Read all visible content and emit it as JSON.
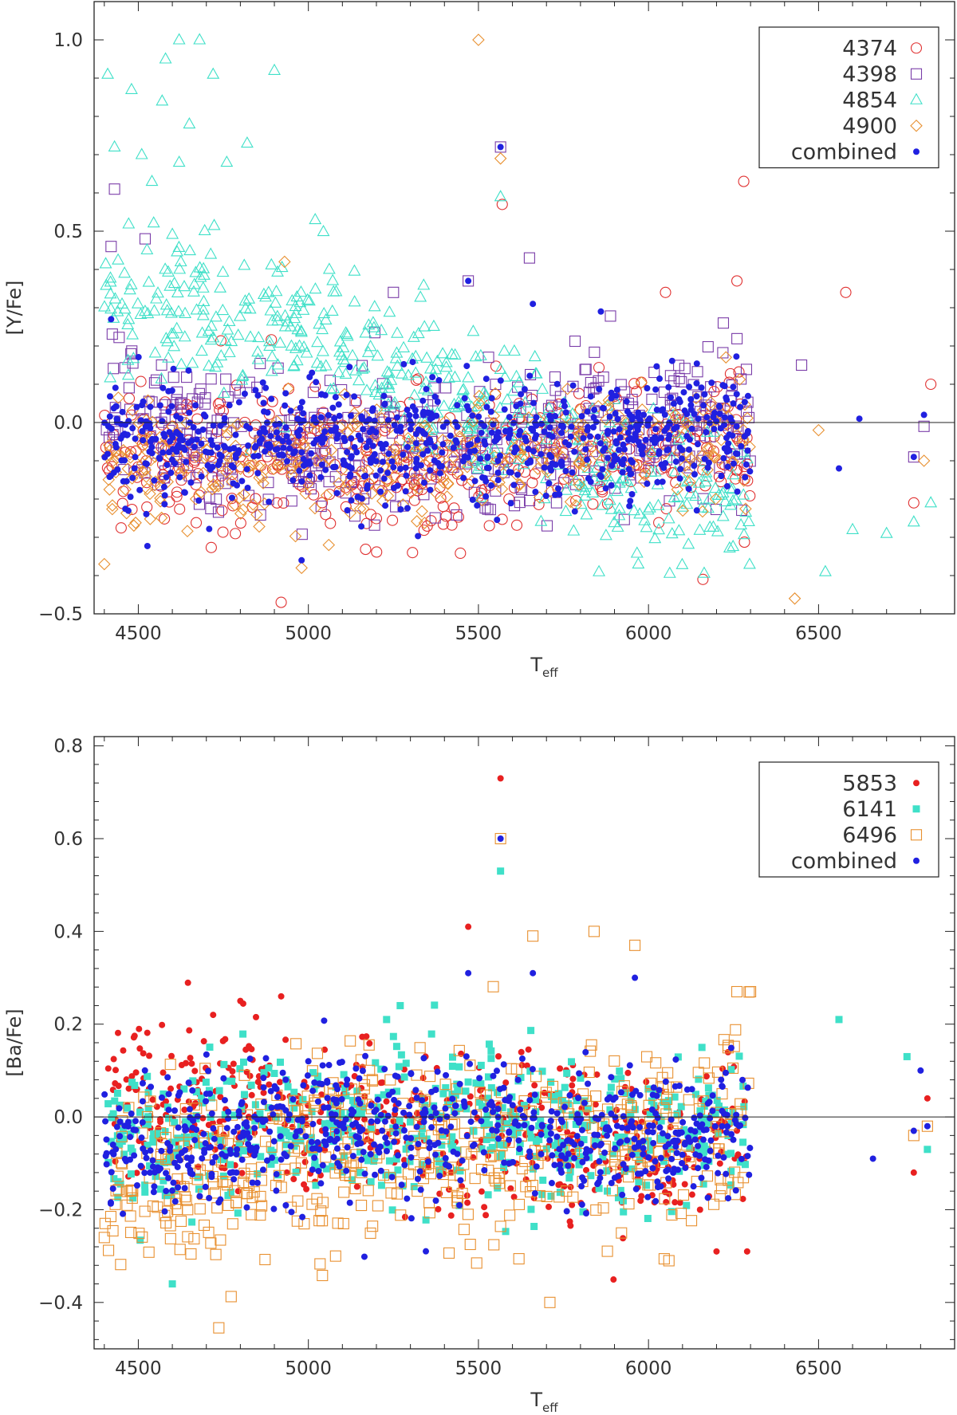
{
  "chart_data": [
    {
      "type": "scatter",
      "title": "",
      "xlabel": "T",
      "xlabel_sub": "eff",
      "ylabel": "[Y/Fe]",
      "xlim": [
        4370,
        6900
      ],
      "ylim": [
        -0.5,
        1.1
      ],
      "xticks": [
        4500,
        5000,
        5500,
        6000,
        6500
      ],
      "yticks": [
        -0.5,
        0.0,
        0.5,
        1.0
      ],
      "ytick_labels": [
        "−0.5",
        "0.0",
        "0.5",
        "1.0"
      ],
      "xtick_labels": [
        "4500",
        "5000",
        "5500",
        "6000",
        "6500"
      ],
      "zero_line": true,
      "legend_position": "top-right",
      "series": [
        {
          "name": "4374",
          "marker": "circle-open",
          "color": "#e03030",
          "trend": [
            [
              4400,
              -0.08
            ],
            [
              5000,
              -0.1
            ],
            [
              5500,
              -0.09
            ],
            [
              6000,
              -0.05
            ],
            [
              6300,
              -0.05
            ]
          ],
          "spread": 0.09,
          "n_bulk": 440,
          "highlights": [
            [
              6280,
              0.63
            ],
            [
              5570,
              0.57
            ],
            [
              4920,
              -0.47
            ],
            [
              6580,
              0.34
            ],
            [
              6830,
              0.1
            ],
            [
              6780,
              -0.21
            ],
            [
              6160,
              -0.41
            ],
            [
              6260,
              0.37
            ],
            [
              6050,
              0.34
            ]
          ]
        },
        {
          "name": "4398",
          "marker": "square-open",
          "color": "#7a3ca8",
          "trend": [
            [
              4400,
              0.05
            ],
            [
              4600,
              -0.02
            ],
            [
              5000,
              -0.08
            ],
            [
              5500,
              -0.06
            ],
            [
              6000,
              0.02
            ],
            [
              6300,
              0.0
            ]
          ],
          "spread": 0.1,
          "n_bulk": 440,
          "highlights": [
            [
              5565,
              0.72
            ],
            [
              4430,
              0.61
            ],
            [
              4420,
              0.46
            ],
            [
              4520,
              0.48
            ],
            [
              5470,
              0.37
            ],
            [
              5650,
              0.43
            ],
            [
              5250,
              0.34
            ],
            [
              6220,
              0.26
            ],
            [
              6810,
              -0.01
            ],
            [
              6780,
              -0.09
            ],
            [
              6450,
              0.15
            ]
          ]
        },
        {
          "name": "4854",
          "marker": "triangle-open",
          "color": "#3fe0c8",
          "trend": [
            [
              4400,
              0.35
            ],
            [
              4700,
              0.28
            ],
            [
              5000,
              0.22
            ],
            [
              5400,
              0.08
            ],
            [
              5800,
              -0.12
            ],
            [
              6000,
              -0.18
            ],
            [
              6300,
              -0.2
            ]
          ],
          "spread": 0.1,
          "n_bulk": 470,
          "highlights": [
            [
              4620,
              1.0
            ],
            [
              4680,
              1.0
            ],
            [
              4580,
              0.95
            ],
            [
              4720,
              0.91
            ],
            [
              4900,
              0.92
            ],
            [
              4410,
              0.91
            ],
            [
              4480,
              0.87
            ],
            [
              4570,
              0.84
            ],
            [
              4650,
              0.78
            ],
            [
              4430,
              0.72
            ],
            [
              4510,
              0.7
            ],
            [
              4620,
              0.68
            ],
            [
              4820,
              0.73
            ],
            [
              4760,
              0.68
            ],
            [
              5020,
              0.53
            ],
            [
              4540,
              0.63
            ],
            [
              5565,
              0.59
            ],
            [
              6520,
              -0.39
            ],
            [
              6600,
              -0.28
            ],
            [
              6780,
              -0.26
            ],
            [
              6830,
              -0.21
            ],
            [
              6700,
              -0.29
            ],
            [
              5970,
              -0.37
            ]
          ]
        },
        {
          "name": "4900",
          "marker": "diamond-open",
          "color": "#e89030",
          "trend": [
            [
              4400,
              -0.12
            ],
            [
              5000,
              -0.1
            ],
            [
              5500,
              -0.08
            ],
            [
              6000,
              -0.04
            ],
            [
              6300,
              -0.04
            ]
          ],
          "spread": 0.08,
          "n_bulk": 380,
          "highlights": [
            [
              5500,
              1.0
            ],
            [
              5565,
              0.69
            ],
            [
              4930,
              0.42
            ],
            [
              4400,
              -0.37
            ],
            [
              6430,
              -0.46
            ],
            [
              4980,
              -0.38
            ],
            [
              5060,
              -0.32
            ],
            [
              6500,
              -0.02
            ],
            [
              6810,
              -0.1
            ]
          ]
        },
        {
          "name": "combined",
          "marker": "dot",
          "color": "#2020e0",
          "trend": [
            [
              4400,
              -0.04
            ],
            [
              5000,
              -0.05
            ],
            [
              5500,
              -0.06
            ],
            [
              6000,
              -0.03
            ],
            [
              6300,
              -0.02
            ]
          ],
          "spread": 0.08,
          "n_bulk": 760,
          "highlights": [
            [
              5565,
              0.72
            ],
            [
              5470,
              0.37
            ],
            [
              4420,
              0.27
            ],
            [
              6620,
              0.01
            ],
            [
              6810,
              0.02
            ],
            [
              4980,
              -0.36
            ],
            [
              6780,
              -0.09
            ],
            [
              6560,
              -0.12
            ],
            [
              5660,
              0.31
            ],
            [
              5860,
              0.29
            ]
          ]
        }
      ]
    },
    {
      "type": "scatter",
      "title": "",
      "xlabel": "T",
      "xlabel_sub": "eff",
      "ylabel": "[Ba/Fe]",
      "xlim": [
        4370,
        6900
      ],
      "ylim": [
        -0.5,
        0.82
      ],
      "xticks": [
        4500,
        5000,
        5500,
        6000,
        6500
      ],
      "yticks": [
        -0.4,
        -0.2,
        0.0,
        0.2,
        0.4,
        0.6,
        0.8
      ],
      "ytick_labels": [
        "−0.4",
        "−0.2",
        "0.0",
        "0.2",
        "0.4",
        "0.6",
        "0.8"
      ],
      "xtick_labels": [
        "4500",
        "5000",
        "5500",
        "6000",
        "6500"
      ],
      "zero_line": true,
      "legend_position": "top-right",
      "series": [
        {
          "name": "5853",
          "marker": "dot",
          "color": "#e82020",
          "trend": [
            [
              4400,
              0.02
            ],
            [
              4800,
              0.04
            ],
            [
              5000,
              0.0
            ],
            [
              5500,
              -0.03
            ],
            [
              6000,
              -0.07
            ],
            [
              6300,
              -0.05
            ]
          ],
          "spread": 0.09,
          "n_bulk": 520,
          "highlights": [
            [
              5565,
              0.73
            ],
            [
              5470,
              0.41
            ],
            [
              4920,
              0.26
            ],
            [
              4800,
              0.25
            ],
            [
              4720,
              0.22
            ],
            [
              6200,
              -0.29
            ],
            [
              6290,
              -0.29
            ],
            [
              6780,
              -0.12
            ],
            [
              6820,
              0.04
            ]
          ]
        },
        {
          "name": "6141",
          "marker": "square-filled",
          "color": "#3fe0c8",
          "trend": [
            [
              4400,
              -0.06
            ],
            [
              5000,
              -0.02
            ],
            [
              5500,
              -0.02
            ],
            [
              6000,
              -0.04
            ],
            [
              6300,
              0.0
            ]
          ],
          "spread": 0.08,
          "n_bulk": 560,
          "highlights": [
            [
              5565,
              0.53
            ],
            [
              4600,
              -0.36
            ],
            [
              6760,
              0.13
            ],
            [
              6820,
              -0.07
            ],
            [
              6560,
              0.21
            ],
            [
              5270,
              0.24
            ],
            [
              5230,
              0.21
            ]
          ]
        },
        {
          "name": "6496",
          "marker": "square-open",
          "color": "#e89030",
          "trend": [
            [
              4400,
              -0.15
            ],
            [
              4700,
              -0.13
            ],
            [
              5000,
              -0.08
            ],
            [
              5500,
              -0.04
            ],
            [
              6000,
              -0.03
            ],
            [
              6300,
              0.0
            ]
          ],
          "spread": 0.1,
          "n_bulk": 520,
          "highlights": [
            [
              5565,
              0.6
            ],
            [
              5840,
              0.4
            ],
            [
              5660,
              0.39
            ],
            [
              5960,
              0.37
            ],
            [
              5710,
              -0.4
            ],
            [
              6060,
              -0.31
            ],
            [
              5080,
              -0.3
            ],
            [
              4400,
              -0.26
            ],
            [
              6300,
              0.27
            ],
            [
              6260,
              0.27
            ],
            [
              6820,
              -0.02
            ],
            [
              6780,
              -0.04
            ]
          ]
        },
        {
          "name": "combined",
          "marker": "dot",
          "color": "#2020e0",
          "trend": [
            [
              4400,
              -0.08
            ],
            [
              5000,
              -0.02
            ],
            [
              5500,
              -0.03
            ],
            [
              6000,
              -0.05
            ],
            [
              6300,
              -0.02
            ]
          ],
          "spread": 0.07,
          "n_bulk": 700,
          "highlights": [
            [
              5565,
              0.6
            ],
            [
              5470,
              0.31
            ],
            [
              5660,
              0.31
            ],
            [
              5960,
              0.3
            ],
            [
              6800,
              0.1
            ],
            [
              6780,
              -0.03
            ],
            [
              6660,
              -0.09
            ],
            [
              6820,
              -0.02
            ]
          ]
        }
      ]
    }
  ]
}
